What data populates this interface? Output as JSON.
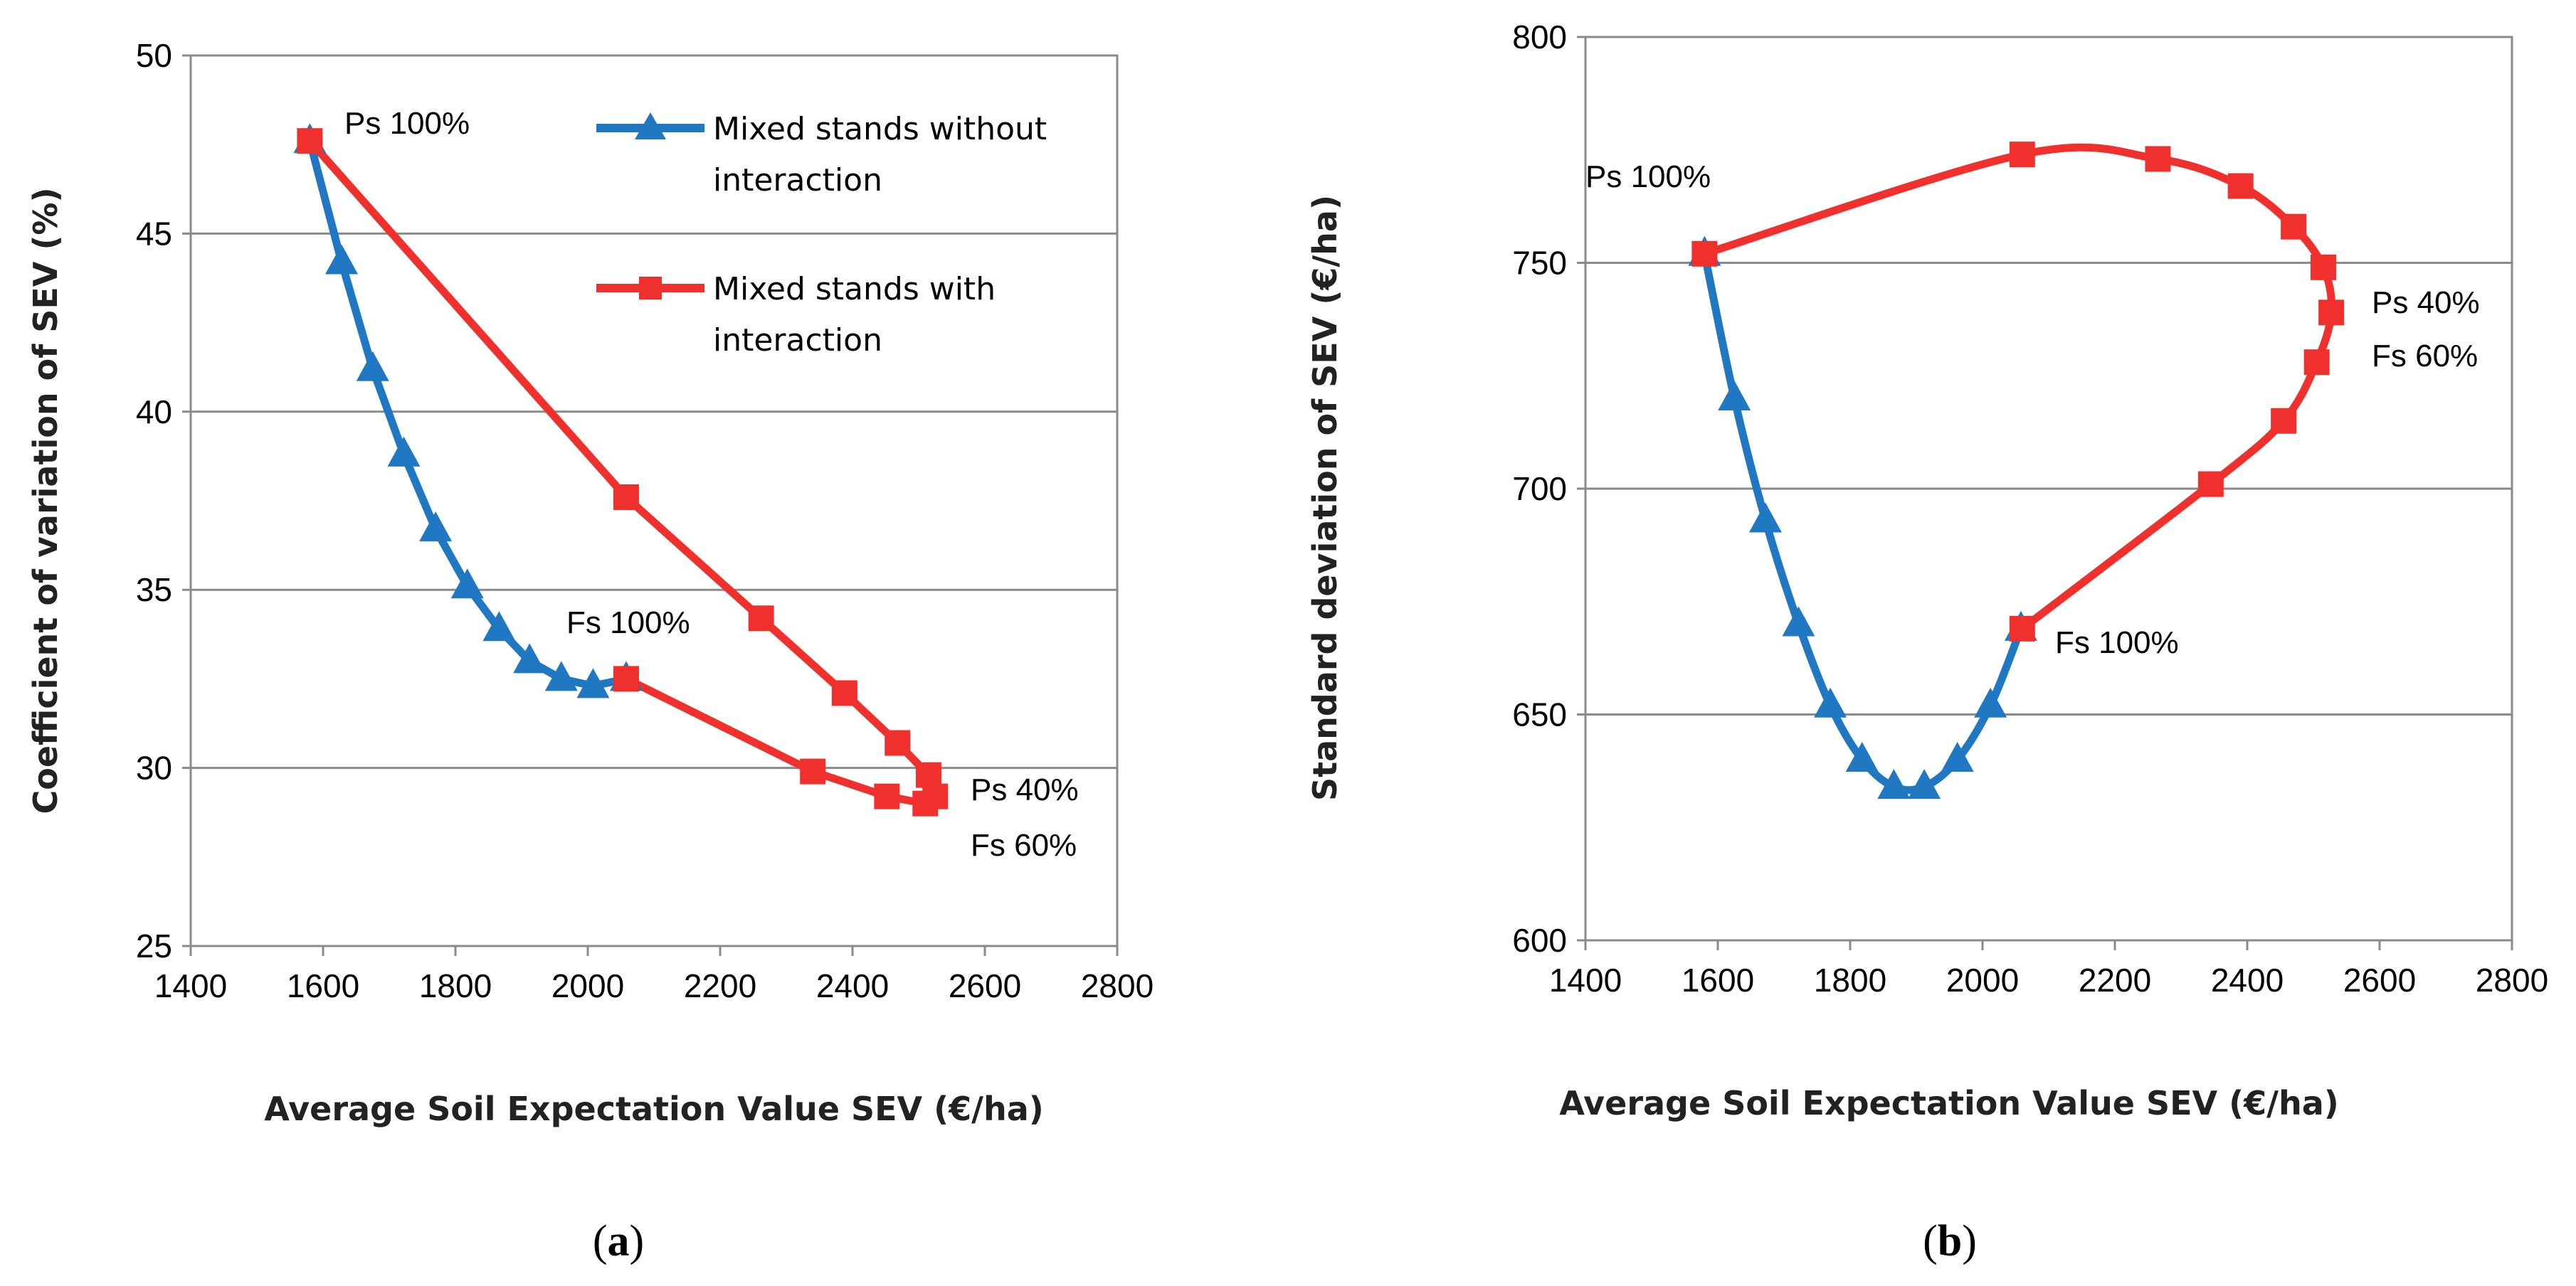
{
  "chart_data": [
    {
      "type": "line",
      "panel": "a",
      "caption": "(a)",
      "caption_letter": "a",
      "xlabel": "Average Soil Expectation Value SEV (€/ha)",
      "ylabel": "Coefficient of variation of SEV (%)",
      "xlim": [
        1400,
        2800
      ],
      "ylim": [
        25,
        50
      ],
      "xticks": [
        1400,
        1600,
        1800,
        2000,
        2200,
        2400,
        2600,
        2800
      ],
      "yticks": [
        25,
        30,
        35,
        40,
        45,
        50
      ],
      "grid": "horizontal",
      "legend_position": "top-right",
      "series": [
        {
          "name": "Mixed stands without interaction",
          "color": "#1f78c1",
          "marker": "triangle",
          "smooth": false,
          "x": [
            1580,
            1628,
            1675,
            1722,
            1770,
            1818,
            1866,
            1912,
            1960,
            2008,
            2058
          ],
          "y": [
            47.6,
            44.2,
            41.2,
            38.8,
            36.7,
            35.1,
            33.9,
            33.0,
            32.5,
            32.3,
            32.5
          ]
        },
        {
          "name": "Mixed stands with interaction",
          "color": "#f0302c",
          "marker": "square",
          "smooth": false,
          "x": [
            1580,
            2058,
            2262,
            2388,
            2468,
            2515,
            2525,
            2510,
            2452,
            2340,
            2058
          ],
          "y": [
            47.6,
            37.6,
            34.2,
            32.1,
            30.7,
            29.8,
            29.2,
            29.0,
            29.2,
            29.9,
            32.5
          ]
        }
      ],
      "annotations": [
        {
          "text": "Ps 100%"
        },
        {
          "text": "Fs 100%"
        },
        {
          "text": "Ps 40%"
        },
        {
          "text": "Fs 60%"
        }
      ]
    },
    {
      "type": "line",
      "panel": "b",
      "caption": "(b)",
      "caption_letter": "b",
      "xlabel": "Average Soil Expectation Value SEV (€/ha)",
      "ylabel": "Standard deviation of SEV (€/ha)",
      "xlim": [
        1400,
        2800
      ],
      "ylim": [
        600,
        800
      ],
      "xticks": [
        1400,
        1600,
        1800,
        2000,
        2200,
        2400,
        2600,
        2800
      ],
      "yticks": [
        600,
        650,
        700,
        750,
        800
      ],
      "grid": "horizontal",
      "series": [
        {
          "name": "Mixed stands without interaction",
          "color": "#1f78c1",
          "marker": "triangle",
          "smooth": true,
          "x": [
            1580,
            1625,
            1672,
            1722,
            1770,
            1818,
            1866,
            1912,
            1962,
            2012,
            2058
          ],
          "y": [
            752,
            720,
            693,
            670,
            652,
            640,
            634,
            634,
            640,
            652,
            669
          ]
        },
        {
          "name": "Mixed stands with interaction",
          "color": "#f0302c",
          "marker": "square",
          "smooth": true,
          "x": [
            1580,
            2060,
            2265,
            2390,
            2470,
            2515,
            2527,
            2505,
            2455,
            2345,
            2060
          ],
          "y": [
            752,
            774,
            773,
            767,
            758,
            749,
            739,
            728,
            715,
            701,
            669
          ]
        }
      ],
      "annotations": [
        {
          "text": "Ps 100%"
        },
        {
          "text": "Ps 40%"
        },
        {
          "text": "Fs 60%"
        },
        {
          "text": "Fs 100%"
        }
      ]
    }
  ]
}
